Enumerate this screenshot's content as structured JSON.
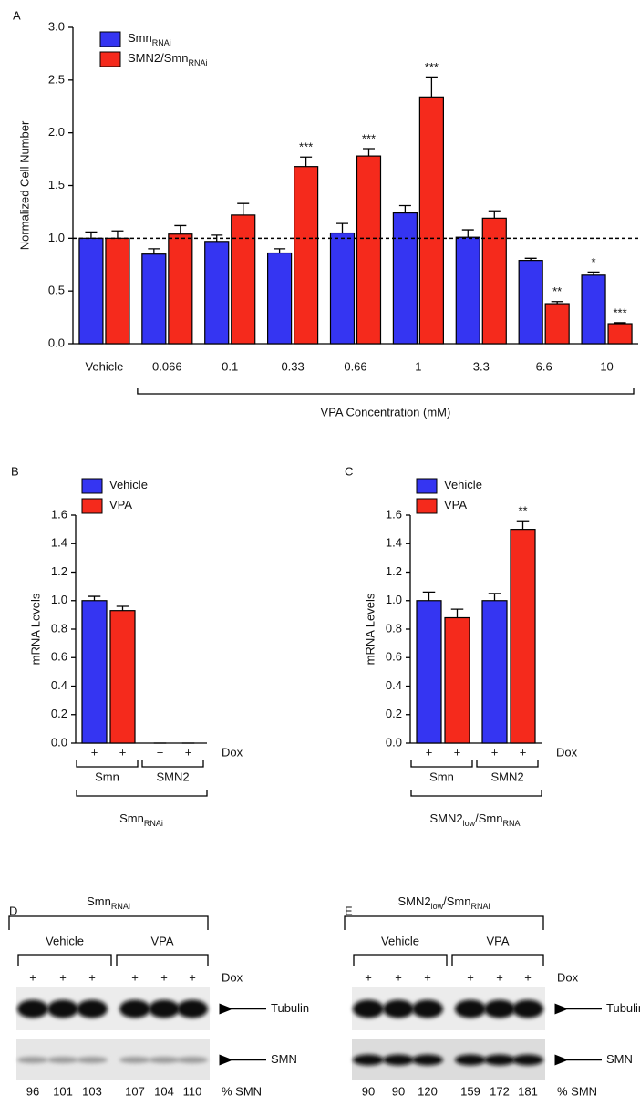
{
  "chart_data": [
    {
      "type": "bar",
      "panel_label": "A",
      "ylabel": "Normalized Cell Number",
      "categories": [
        "Vehicle",
        "0.066",
        "0.1",
        "0.33",
        "0.66",
        "1",
        "3.3",
        "6.6",
        "10"
      ],
      "series": [
        {
          "name": [
            "Smn",
            "RNAi"
          ],
          "color": "#3535f2",
          "values": [
            1.0,
            0.85,
            0.97,
            0.86,
            1.05,
            1.24,
            1.01,
            0.79,
            0.65
          ],
          "errors": [
            0.06,
            0.05,
            0.06,
            0.04,
            0.09,
            0.07,
            0.07,
            0.02,
            0.03
          ],
          "significance": [
            null,
            null,
            null,
            null,
            null,
            null,
            null,
            null,
            "*"
          ]
        },
        {
          "name": [
            "SMN2/Smn",
            "RNAi"
          ],
          "color": "#f52a1c",
          "values": [
            1.0,
            1.04,
            1.22,
            1.68,
            1.78,
            2.34,
            1.19,
            0.38,
            0.19
          ],
          "errors": [
            0.07,
            0.08,
            0.11,
            0.09,
            0.07,
            0.19,
            0.07,
            0.02,
            0.01
          ],
          "significance": [
            null,
            null,
            null,
            "***",
            "***",
            "***",
            null,
            "**",
            "***"
          ]
        }
      ],
      "ylim": [
        0,
        3
      ],
      "yticks": [
        {
          "value": 0,
          "label": "0.0"
        },
        0.5,
        {
          "value": 1,
          "label": "1.0"
        },
        1.5,
        {
          "value": 2,
          "label": "2.0"
        },
        2.5,
        {
          "value": 3,
          "label": "3.0"
        }
      ],
      "reference_line": 1,
      "xlabel": "VPA Concentration (mM)",
      "legend": "upper left"
    },
    {
      "type": "bar",
      "panel_label": "B",
      "ylabel": "mRNA Levels",
      "categories": [
        "Smn",
        "SMN2"
      ],
      "series": [
        {
          "name": [
            "Vehicle"
          ],
          "color": "#3535f2",
          "values": [
            1.0,
            0
          ],
          "errors": [
            0.03,
            0
          ],
          "significance": [
            null,
            null
          ]
        },
        {
          "name": [
            "VPA"
          ],
          "color": "#f52a1c",
          "values": [
            0.93,
            0
          ],
          "errors": [
            0.03,
            0
          ],
          "significance": [
            null,
            null
          ]
        }
      ],
      "ylim": [
        0,
        1.6
      ],
      "yticks": [
        {
          "value": 0,
          "label": "0.0"
        },
        0.2,
        0.4,
        0.6,
        0.8,
        {
          "value": 1,
          "label": "1.0"
        },
        1.2,
        1.4,
        1.6
      ],
      "dox_row": {
        "label": "Dox",
        "marks": [
          "+",
          "+",
          "+",
          "+"
        ]
      },
      "xlabel": [
        "Smn",
        "RNAi"
      ],
      "legend": "upper left"
    },
    {
      "type": "bar",
      "panel_label": "C",
      "ylabel": "mRNA Levels",
      "categories": [
        "Smn",
        "SMN2"
      ],
      "series": [
        {
          "name": [
            "Vehicle"
          ],
          "color": "#3535f2",
          "values": [
            1.0,
            1.0
          ],
          "errors": [
            0.06,
            0.05
          ],
          "significance": [
            null,
            null
          ]
        },
        {
          "name": [
            "VPA"
          ],
          "color": "#f52a1c",
          "values": [
            0.88,
            1.5
          ],
          "errors": [
            0.06,
            0.06
          ],
          "significance": [
            null,
            "**"
          ]
        }
      ],
      "ylim": [
        0,
        1.6
      ],
      "yticks": [
        {
          "value": 0,
          "label": "0.0"
        },
        0.2,
        0.4,
        0.6,
        0.8,
        {
          "value": 1,
          "label": "1.0"
        },
        1.2,
        1.4,
        1.6
      ],
      "dox_row": {
        "label": "Dox",
        "marks": [
          "+",
          "+",
          "+",
          "+"
        ]
      },
      "xlabel": [
        "SMN2",
        "low",
        "/Smn",
        "RNAi"
      ],
      "legend": "upper left"
    }
  ],
  "blots": [
    {
      "panel_label": "D",
      "cell_line": [
        "Smn",
        "RNAi"
      ],
      "treatments": [
        "Vehicle",
        "VPA"
      ],
      "dox_row": {
        "label": "Dox",
        "marks": [
          "+",
          "+",
          "+",
          "+",
          "+",
          "+"
        ]
      },
      "bands": [
        "Tubulin",
        "SMN"
      ],
      "percent_label": "% SMN",
      "percent_smn": [
        96,
        101,
        103,
        107,
        104,
        110
      ]
    },
    {
      "panel_label": "E",
      "cell_line": [
        "SMN2",
        "low",
        "/Smn",
        "RNAi"
      ],
      "treatments": [
        "Vehicle",
        "VPA"
      ],
      "dox_row": {
        "label": "Dox",
        "marks": [
          "+",
          "+",
          "+",
          "+",
          "+",
          "+"
        ]
      },
      "bands": [
        "Tubulin",
        "SMN"
      ],
      "percent_label": "% SMN",
      "percent_smn": [
        90,
        90,
        120,
        159,
        172,
        181
      ]
    }
  ]
}
